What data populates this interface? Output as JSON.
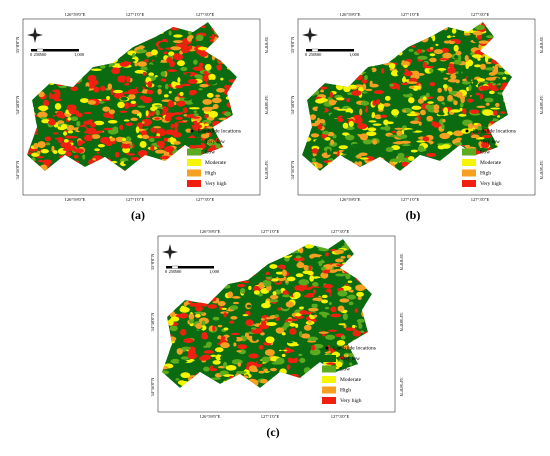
{
  "panels": [
    {
      "label": "(a)"
    },
    {
      "label": "(b)"
    },
    {
      "label": "(c)"
    }
  ],
  "map": {
    "top_labels": [
      "126°59'0\"E",
      "127°1'0\"E",
      "127°3'0\"E"
    ],
    "bottom_labels": [
      "126°59'0\"E",
      "127°1'0\"E",
      "127°3'0\"E"
    ],
    "left_labels": [
      "35°0'0\"N",
      "34°58'0\"N",
      "34°56'0\"N"
    ],
    "right_labels": [
      "35°0'0\"N",
      "34°58'0\"N",
      "34°56'0\"N"
    ],
    "scale_labels": [
      "0",
      "250",
      "500",
      "1,000"
    ],
    "legend": {
      "points": "Landslide locations",
      "classes": [
        {
          "label": "Very low",
          "color": "#0b6b10"
        },
        {
          "label": "Low",
          "color": "#5aab1e"
        },
        {
          "label": "Moderate",
          "color": "#f5f500"
        },
        {
          "label": "High",
          "color": "#f5a020"
        },
        {
          "label": "Very high",
          "color": "#f02010"
        }
      ]
    }
  }
}
